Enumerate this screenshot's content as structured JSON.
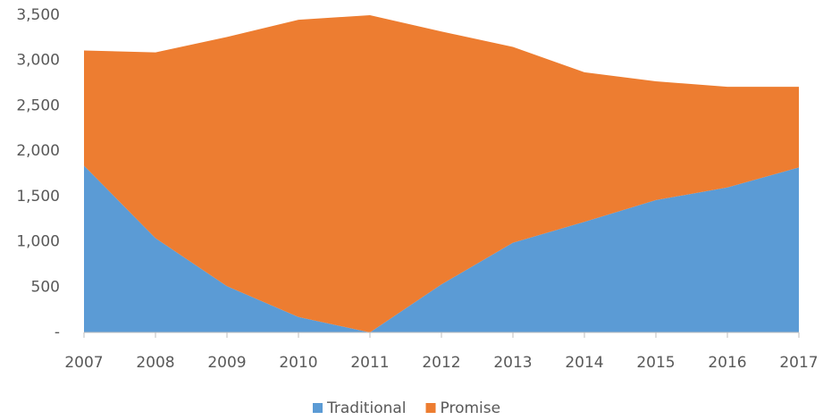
{
  "chart_data": {
    "type": "stacked_area",
    "categories": [
      "2007",
      "2008",
      "2009",
      "2010",
      "2011",
      "2012",
      "2013",
      "2014",
      "2015",
      "2016",
      "2017"
    ],
    "series": [
      {
        "name": "Traditional",
        "color": "#5b9bd5",
        "values": [
          1840,
          1040,
          510,
          170,
          0,
          530,
          990,
          1220,
          1460,
          1600,
          1820
        ]
      },
      {
        "name": "Promise",
        "color": "#ed7d31",
        "values": [
          1270,
          2050,
          2750,
          3280,
          3500,
          2790,
          2160,
          1650,
          1310,
          1110,
          890
        ]
      }
    ],
    "ylim": [
      0,
      3500
    ],
    "yticks": [
      {
        "value": 0,
        "label": "-"
      },
      500,
      {
        "value": 1000,
        "label": "1,000"
      },
      {
        "value": 1500,
        "label": "1,500"
      },
      {
        "value": 2000,
        "label": "2,000"
      },
      {
        "value": 2500,
        "label": "2,500"
      },
      {
        "value": 3000,
        "label": "3,000"
      },
      {
        "value": 3500,
        "label": "3,500"
      }
    ],
    "grid": false,
    "legend": "bottom"
  }
}
